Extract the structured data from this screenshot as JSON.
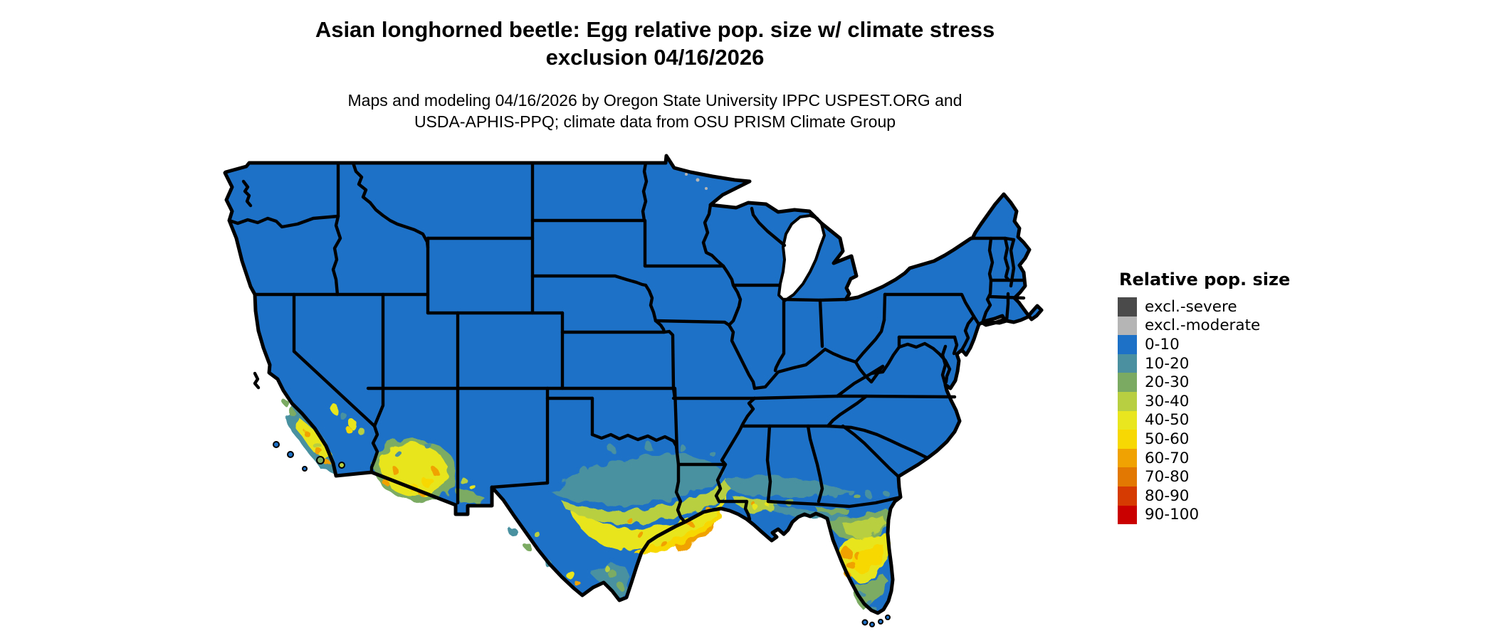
{
  "title": {
    "line1": "Asian longhorned beetle: Egg relative pop. size w/ climate stress",
    "line2": "exclusion 04/16/2026"
  },
  "subtitle": {
    "line1": "Maps and modeling 04/16/2026 by Oregon State University IPPC USPEST.ORG and",
    "line2": "USDA-APHIS-PPQ; climate data from OSU PRISM Climate Group"
  },
  "legend": {
    "title": "Relative pop. size",
    "items": [
      {
        "label": "excl.-severe",
        "key": "exs",
        "color": "#4a4a4a"
      },
      {
        "label": "excl.-moderate",
        "key": "exm",
        "color": "#b5b5b5"
      },
      {
        "label": "0-10",
        "key": "b",
        "color": "#1d72c8"
      },
      {
        "label": "10-20",
        "key": "t",
        "color": "#4a90a0"
      },
      {
        "label": "20-30",
        "key": "g",
        "color": "#7bab63"
      },
      {
        "label": "30-40",
        "key": "yg",
        "color": "#b8cf41"
      },
      {
        "label": "40-50",
        "key": "y",
        "color": "#e9e51f"
      },
      {
        "label": "50-60",
        "key": "gd",
        "color": "#f7d802"
      },
      {
        "label": "60-70",
        "key": "o",
        "color": "#f0a202"
      },
      {
        "label": "70-80",
        "key": "do",
        "color": "#e27702"
      },
      {
        "label": "80-90",
        "key": "ro",
        "color": "#d63b01"
      },
      {
        "label": "90-100",
        "key": "r",
        "color": "#ca0000"
      }
    ]
  },
  "map": {
    "background": "#ffffff",
    "border_color": "#000000",
    "base_fill_key": "b",
    "lake_fill": "#ffffff",
    "hotspot_regions": [
      "southern California coast",
      "southern Arizona / southwest New Mexico",
      "central and southern Texas gulf region",
      "Louisiana / Mississippi / Alabama gulf coast",
      "Florida peninsula"
    ]
  },
  "chart_data": {
    "type": "choropleth-map",
    "title": "Asian longhorned beetle: Egg relative pop. size w/ climate stress exclusion 04/16/2026",
    "legend_title": "Relative pop. size",
    "bins": [
      "excl.-severe",
      "excl.-moderate",
      "0-10",
      "10-20",
      "20-30",
      "30-40",
      "40-50",
      "50-60",
      "60-70",
      "70-80",
      "80-90",
      "90-100"
    ],
    "bin_colors": [
      "#4a4a4a",
      "#b5b5b5",
      "#1d72c8",
      "#4a90a0",
      "#7bab63",
      "#b8cf41",
      "#e9e51f",
      "#f7d802",
      "#f0a202",
      "#e27702",
      "#d63b01",
      "#ca0000"
    ],
    "region": "contiguous United States",
    "dominant_bin": "0-10",
    "elevated_areas": {
      "southern California": "10-70 speckled",
      "southern Arizona": "40-70 core with 20-40 fringe",
      "central Texas": "10-40 band",
      "south Texas coast": "40-70",
      "gulf coast LA-MS-AL": "10-40",
      "central Florida": "40-70",
      "south Florida": "10-30"
    }
  }
}
